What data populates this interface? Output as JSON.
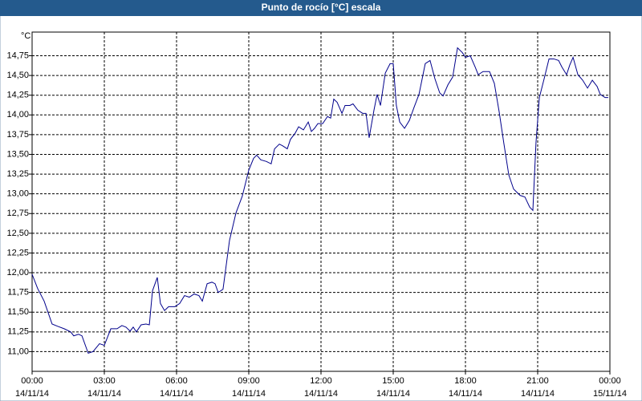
{
  "chart_data": {
    "type": "line",
    "title": "Punto de rocío [°C] escala",
    "y_label": "°C",
    "color": "#00008b",
    "grid": true,
    "xlim": [
      0,
      24
    ],
    "ylim": [
      10.75,
      15.05
    ],
    "xticks": [
      {
        "value": 0,
        "label": "00:00",
        "date": "14/11/14"
      },
      {
        "value": 3,
        "label": "03:00",
        "date": "14/11/14"
      },
      {
        "value": 6,
        "label": "06:00",
        "date": "14/11/14"
      },
      {
        "value": 9,
        "label": "09:00",
        "date": "14/11/14"
      },
      {
        "value": 12,
        "label": "12:00",
        "date": "14/11/14"
      },
      {
        "value": 15,
        "label": "15:00",
        "date": "14/11/14"
      },
      {
        "value": 18,
        "label": "18:00",
        "date": "14/11/14"
      },
      {
        "value": 21,
        "label": "21:00",
        "date": "14/11/14"
      },
      {
        "value": 24,
        "label": "00:00",
        "date": "15/11/14"
      }
    ],
    "yticks": [
      {
        "value": 11,
        "label": "11,00"
      },
      {
        "value": 11.25,
        "label": "11,25"
      },
      {
        "value": 11.5,
        "label": "11,50"
      },
      {
        "value": 11.75,
        "label": "11,75"
      },
      {
        "value": 12,
        "label": "12,00"
      },
      {
        "value": 12.25,
        "label": "12,25"
      },
      {
        "value": 12.5,
        "label": "12,50"
      },
      {
        "value": 12.75,
        "label": "12,75"
      },
      {
        "value": 13,
        "label": "13,00"
      },
      {
        "value": 13.25,
        "label": "13,25"
      },
      {
        "value": 13.5,
        "label": "13,50"
      },
      {
        "value": 13.75,
        "label": "13,75"
      },
      {
        "value": 14,
        "label": "14,00"
      },
      {
        "value": 14.25,
        "label": "14,25"
      },
      {
        "value": 14.5,
        "label": "14,50"
      },
      {
        "value": 14.75,
        "label": "14,75"
      }
    ],
    "x": [
      0,
      0.23,
      0.5,
      0.67,
      0.83,
      1.07,
      1.33,
      1.6,
      1.73,
      1.93,
      2.07,
      2.33,
      2.53,
      2.8,
      3,
      3.27,
      3.53,
      3.73,
      3.9,
      4.07,
      4.2,
      4.33,
      4.53,
      4.73,
      4.87,
      5,
      5.2,
      5.33,
      5.5,
      5.67,
      5.93,
      6.13,
      6.33,
      6.53,
      6.73,
      6.93,
      7.07,
      7.27,
      7.47,
      7.6,
      7.73,
      7.93,
      8.2,
      8.47,
      8.73,
      9,
      9.2,
      9.33,
      9.5,
      9.73,
      9.93,
      10.07,
      10.27,
      10.4,
      10.6,
      10.73,
      10.93,
      11.07,
      11.27,
      11.47,
      11.6,
      11.73,
      11.87,
      12.07,
      12.27,
      12.4,
      12.53,
      12.67,
      12.87,
      13,
      13.2,
      13.33,
      13.53,
      13.73,
      13.87,
      14,
      14.2,
      14.33,
      14.47,
      14.67,
      14.87,
      15,
      15.13,
      15.27,
      15.47,
      15.67,
      15.87,
      16.07,
      16.33,
      16.53,
      16.73,
      16.93,
      17.07,
      17.27,
      17.47,
      17.67,
      17.87,
      18,
      18.2,
      18.4,
      18.53,
      18.73,
      19,
      19.2,
      19.4,
      19.6,
      19.8,
      20,
      20.27,
      20.47,
      20.67,
      20.8,
      20.93,
      21.07,
      21.27,
      21.47,
      21.67,
      21.87,
      22,
      22.2,
      22.33,
      22.47,
      22.67,
      22.87,
      23.07,
      23.27,
      23.47,
      23.6,
      23.8,
      23.93
    ],
    "values": [
      11.98,
      11.8,
      11.64,
      11.49,
      11.35,
      11.32,
      11.29,
      11.25,
      11.2,
      11.22,
      11.2,
      10.98,
      11,
      11.1,
      11.08,
      11.29,
      11.29,
      11.33,
      11.31,
      11.26,
      11.31,
      11.25,
      11.34,
      11.35,
      11.34,
      11.77,
      11.94,
      11.61,
      11.52,
      11.57,
      11.57,
      11.61,
      11.71,
      11.69,
      11.73,
      11.71,
      11.64,
      11.86,
      11.88,
      11.86,
      11.75,
      11.79,
      12.41,
      12.76,
      12.97,
      13.3,
      13.45,
      13.49,
      13.43,
      13.41,
      13.38,
      13.57,
      13.63,
      13.61,
      13.57,
      13.69,
      13.77,
      13.85,
      13.81,
      13.91,
      13.79,
      13.83,
      13.89,
      13.89,
      13.98,
      13.96,
      14.2,
      14.16,
      14.02,
      14.12,
      14.12,
      14.14,
      14.06,
      14.02,
      14.02,
      13.71,
      14.06,
      14.26,
      14.12,
      14.53,
      14.65,
      14.65,
      14.12,
      13.91,
      13.83,
      13.93,
      14.1,
      14.26,
      14.65,
      14.69,
      14.46,
      14.28,
      14.24,
      14.38,
      14.48,
      14.85,
      14.79,
      14.73,
      14.75,
      14.61,
      14.51,
      14.55,
      14.55,
      14.4,
      14.04,
      13.63,
      13.24,
      13.06,
      12.98,
      12.96,
      12.83,
      12.79,
      13.65,
      14.22,
      14.46,
      14.71,
      14.71,
      14.69,
      14.61,
      14.51,
      14.63,
      14.73,
      14.51,
      14.44,
      14.34,
      14.44,
      14.36,
      14.26,
      14.22,
      14.22
    ]
  }
}
